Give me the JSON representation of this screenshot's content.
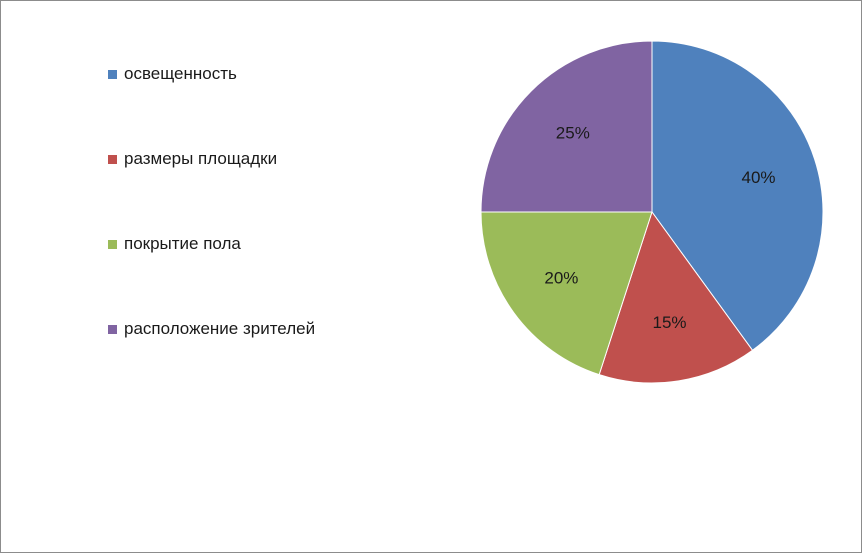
{
  "chart_data": {
    "type": "pie",
    "title": "",
    "categories": [
      "освещенность",
      "размеры площадки",
      "покрытие пола",
      "расположение зрителей"
    ],
    "values": [
      40,
      15,
      20,
      25
    ],
    "data_labels": [
      "40%",
      "15%",
      "20%",
      "25%"
    ],
    "colors": [
      "#4F81BD",
      "#C0504D",
      "#9BBB59",
      "#8064A2"
    ],
    "legend_position": "left",
    "start_angle_deg": 0,
    "direction": "clockwise"
  }
}
